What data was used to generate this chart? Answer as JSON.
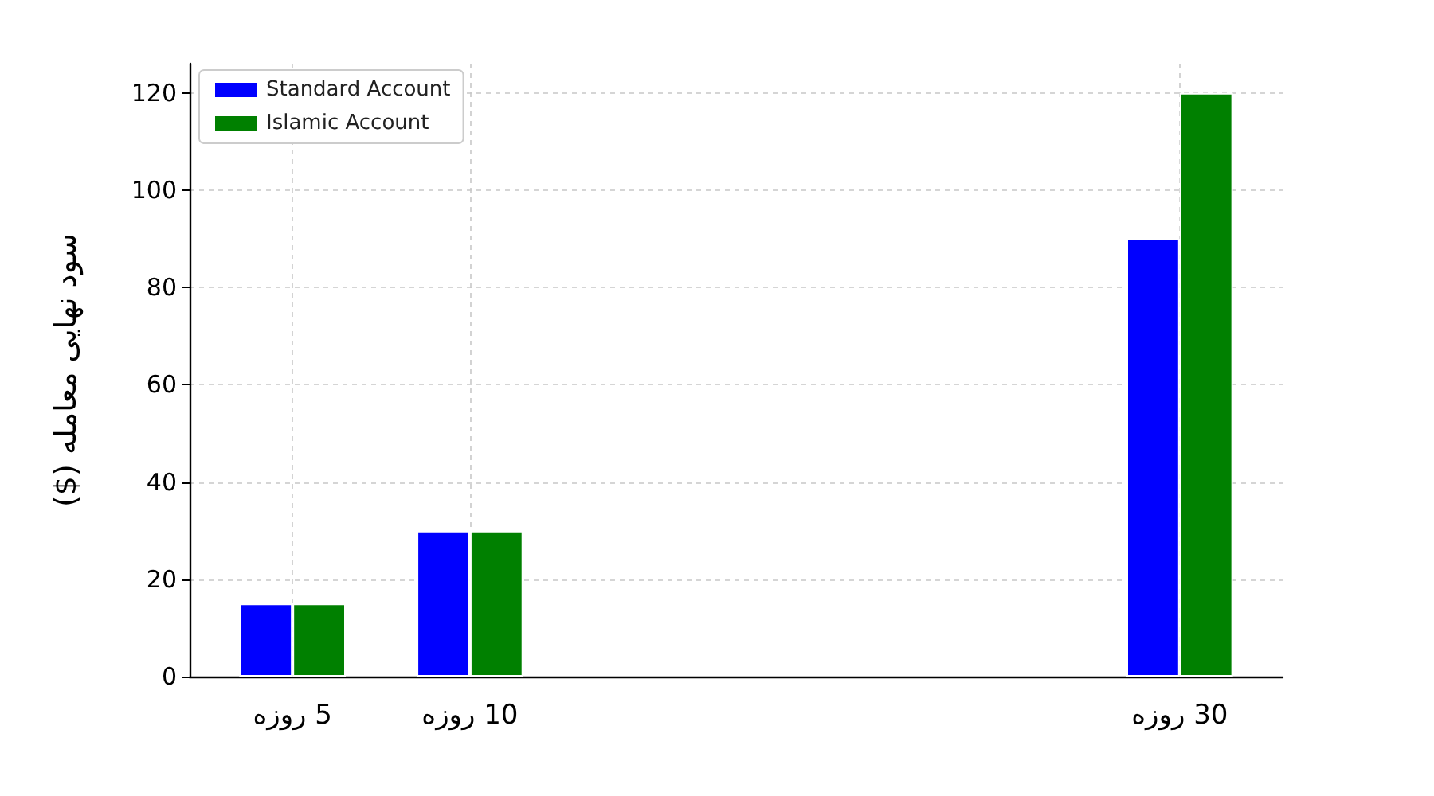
{
  "chart_data": {
    "type": "bar",
    "ylabel": "سود نهایی معامله ($)",
    "x": [
      5,
      10,
      30
    ],
    "series": [
      {
        "name": "Standard Account",
        "color": "#0000ff",
        "values": [
          15,
          30,
          90
        ]
      },
      {
        "name": "Islamic Account",
        "color": "#008000",
        "values": [
          15,
          30,
          120
        ]
      }
    ],
    "xlim": [
      2.1,
      32.9
    ],
    "xticks": [
      {
        "value": 5,
        "label": "5 روزه"
      },
      {
        "value": 10,
        "label": "10 روزه"
      },
      {
        "value": 30,
        "label": "30 روزه"
      }
    ],
    "ylim": [
      0,
      126
    ],
    "yticks": [
      0,
      20,
      40,
      60,
      80,
      100,
      120
    ],
    "grid": true,
    "legend": "top left"
  }
}
